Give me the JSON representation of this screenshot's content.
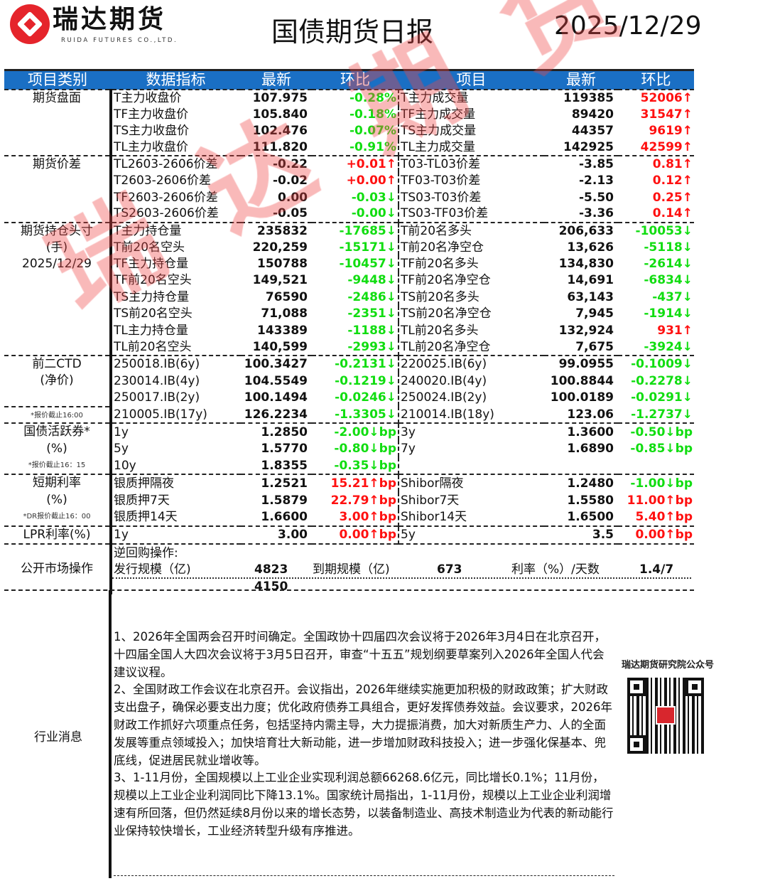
{
  "header": {
    "logo_cn": "瑞达期货",
    "logo_en": "RUIDA FUTURES CO.,LTD.",
    "title": "国债期货日报",
    "date": "2025/12/29"
  },
  "colors": {
    "up": "#ff1010",
    "down": "#11dd11",
    "header_bg": "#1a6fc4"
  },
  "watermark": "瑞达期货",
  "table": {
    "headers": [
      "项目类别",
      "数据指标",
      "最新",
      "环比",
      "项目",
      "最新",
      "环比"
    ],
    "sections": [
      {
        "category": [
          "期货盘面"
        ],
        "rows": [
          {
            "l_name": "T主力收盘价",
            "l_val": "107.975",
            "l_chg": "-0.28%",
            "l_dir": "down",
            "r_name": "T主力成交量",
            "r_val": "119385",
            "r_chg": "52006↑",
            "r_dir": "up"
          },
          {
            "l_name": "TF主力收盘价",
            "l_val": "105.840",
            "l_chg": "-0.18%",
            "l_dir": "down",
            "r_name": "TF主力成交量",
            "r_val": "89420",
            "r_chg": "31547↑",
            "r_dir": "up"
          },
          {
            "l_name": "TS主力收盘价",
            "l_val": "102.476",
            "l_chg": "-0.07%",
            "l_dir": "down",
            "r_name": "TS主力成交量",
            "r_val": "44357",
            "r_chg": "9619↑",
            "r_dir": "up"
          },
          {
            "l_name": "TL主力收盘价",
            "l_val": "111.820",
            "l_chg": "-0.91%",
            "l_dir": "down",
            "r_name": "TL主力成交量",
            "r_val": "142925",
            "r_chg": "42599↑",
            "r_dir": "up"
          }
        ]
      },
      {
        "category": [
          "期货价差"
        ],
        "rows": [
          {
            "l_name": "TL2603-2606价差",
            "l_val": "-0.22",
            "l_chg": "+0.01↑",
            "l_dir": "up",
            "r_name": "T03-TL03价差",
            "r_val": "-3.85",
            "r_chg": "0.81↑",
            "r_dir": "up"
          },
          {
            "l_name": "T2603-2606价差",
            "l_val": "-0.02",
            "l_chg": "+0.00↑",
            "l_dir": "up",
            "r_name": "TF03-T03价差",
            "r_val": "-2.13",
            "r_chg": "0.12↑",
            "r_dir": "up"
          },
          {
            "l_name": "TF2603-2606价差",
            "l_val": "0.00",
            "l_chg": "-0.03↓",
            "l_dir": "down",
            "r_name": "TS03-T03价差",
            "r_val": "-5.50",
            "r_chg": "0.25↑",
            "r_dir": "up"
          },
          {
            "l_name": "TS2603-2606价差",
            "l_val": "-0.05",
            "l_chg": "-0.00↓",
            "l_dir": "down",
            "r_name": "TS03-TF03价差",
            "r_val": "-3.36",
            "r_chg": "0.14↑",
            "r_dir": "up"
          }
        ]
      },
      {
        "category": [
          "期货持仓头寸",
          "(手)",
          "2025/12/29"
        ],
        "rows": [
          {
            "l_name": "T主力持仓量",
            "l_val": "235832",
            "l_chg": "-17685↓",
            "l_dir": "down",
            "r_name": "T前20名多头",
            "r_val": "206,633",
            "r_chg": "-10053↓",
            "r_dir": "down"
          },
          {
            "l_name": "T前20名空头",
            "l_val": "220,259",
            "l_chg": "-15171↓",
            "l_dir": "down",
            "r_name": "T前20名净空仓",
            "r_val": "13,626",
            "r_chg": "-5118↓",
            "r_dir": "down"
          },
          {
            "l_name": "TF主力持仓量",
            "l_val": "150788",
            "l_chg": "-10457↓",
            "l_dir": "down",
            "r_name": "TF前20名多头",
            "r_val": "134,830",
            "r_chg": "-2614↓",
            "r_dir": "down"
          },
          {
            "l_name": "TF前20名空头",
            "l_val": "149,521",
            "l_chg": "-9448↓",
            "l_dir": "down",
            "r_name": "TF前20名净空仓",
            "r_val": "14,691",
            "r_chg": "-6834↓",
            "r_dir": "down"
          },
          {
            "l_name": "TS主力持仓量",
            "l_val": "76590",
            "l_chg": "-2486↓",
            "l_dir": "down",
            "r_name": "TS前20名多头",
            "r_val": "63,143",
            "r_chg": "-437↓",
            "r_dir": "down"
          },
          {
            "l_name": "TS前20名空头",
            "l_val": "71,088",
            "l_chg": "-2351↓",
            "l_dir": "down",
            "r_name": "TS前20名净空仓",
            "r_val": "7,945",
            "r_chg": "-1914↓",
            "r_dir": "down"
          },
          {
            "l_name": "TL主力持仓量",
            "l_val": "143389",
            "l_chg": "-1188↓",
            "l_dir": "down",
            "r_name": "TL前20名多头",
            "r_val": "132,924",
            "r_chg": "931↑",
            "r_dir": "up"
          },
          {
            "l_name": "TL前20名空头",
            "l_val": "140,599",
            "l_chg": "-2993↓",
            "l_dir": "down",
            "r_name": "TL前20名净空仓",
            "r_val": "7,675",
            "r_chg": "-3924↓",
            "r_dir": "down"
          }
        ]
      },
      {
        "category": [
          "前二CTD",
          "(净价)",
          "",
          "*报价截止16:00"
        ],
        "rows": [
          {
            "l_name": "250018.IB(6y)",
            "l_val": "100.3427",
            "l_chg": "-0.2131↓",
            "l_dir": "down",
            "r_name": "220025.IB(6y)",
            "r_val": "99.0955",
            "r_chg": "-0.1009↓",
            "r_dir": "down"
          },
          {
            "l_name": "230014.IB(4y)",
            "l_val": "104.5549",
            "l_chg": "-0.1219↓",
            "l_dir": "down",
            "r_name": "240020.IB(4y)",
            "r_val": "100.8844",
            "r_chg": "-0.2278↓",
            "r_dir": "down"
          },
          {
            "l_name": "250017.IB(2y)",
            "l_val": "100.1494",
            "l_chg": "-0.0246↓",
            "l_dir": "down",
            "r_name": "250024.IB(2y)",
            "r_val": "100.0189",
            "r_chg": "-0.0291↓",
            "r_dir": "down"
          },
          {
            "l_name": "210005.IB(17y)",
            "l_val": "126.2234",
            "l_chg": "-1.3305↓",
            "l_dir": "down",
            "r_name": "210014.IB(18y)",
            "r_val": "123.06",
            "r_chg": "-1.2737↓",
            "r_dir": "down"
          }
        ]
      },
      {
        "category": [
          "国债活跃券*",
          "(%)",
          "*报价截止16：15"
        ],
        "rows": [
          {
            "l_name": "1y",
            "l_val": "1.2850",
            "l_chg": "-2.00↓bp",
            "l_dir": "down",
            "r_name": "3y",
            "r_val": "1.3600",
            "r_chg": "-0.50↓bp",
            "r_dir": "down"
          },
          {
            "l_name": "5y",
            "l_val": "1.5770",
            "l_chg": "-0.80↓bp",
            "l_dir": "down",
            "r_name": "7y",
            "r_val": "1.6890",
            "r_chg": "-0.85↓bp",
            "r_dir": "down"
          },
          {
            "l_name": "10y",
            "l_val": "1.8355",
            "l_chg": "-0.35↓bp",
            "l_dir": "down",
            "r_name": "",
            "r_val": "",
            "r_chg": "",
            "r_dir": "down"
          }
        ]
      },
      {
        "category": [
          "短期利率",
          "(%)",
          "*DR报价截止16：00"
        ],
        "rows": [
          {
            "l_name": "银质押隔夜",
            "l_val": "1.2521",
            "l_chg": "15.21↑bp",
            "l_dir": "up",
            "r_name": "Shibor隔夜",
            "r_val": "1.2480",
            "r_chg": "-1.00↓bp",
            "r_dir": "down"
          },
          {
            "l_name": "银质押7天",
            "l_val": "1.5879",
            "l_chg": "22.79↑bp",
            "l_dir": "up",
            "r_name": "Shibor7天",
            "r_val": "1.5580",
            "r_chg": "11.00↑bp",
            "r_dir": "up"
          },
          {
            "l_name": "银质押14天",
            "l_val": "1.6600",
            "l_chg": "3.00↑bp",
            "l_dir": "up",
            "r_name": "Shibor14天",
            "r_val": "1.6500",
            "r_chg": "5.40↑bp",
            "r_dir": "up"
          }
        ]
      },
      {
        "category": [
          "LPR利率(%)"
        ],
        "rows": [
          {
            "l_name": "1y",
            "l_val": "3.00",
            "l_chg": "0.00↑bp",
            "l_dir": "up",
            "r_name": "5y",
            "r_val": "3.5",
            "r_chg": "0.00↑bp",
            "r_dir": "up"
          }
        ]
      }
    ],
    "omo": {
      "category": "公开市场操作",
      "title": "逆回购操作:",
      "issue_label": "发行规模（亿)",
      "issue_value": "4823",
      "issue_value_2": "4150",
      "maturity_label": "到期规模（亿)",
      "maturity_value": "673",
      "rate_label": "利率（%）/天数",
      "rate_value": "1.4/7"
    }
  },
  "news": {
    "label": "行业消息",
    "items": [
      "1、2026年全国两会召开时间确定。全国政协十四届四次会议将于2026年3月4日在北京召开，十四届全国人大四次会议将于3月5日召开，审查“十五五”规划纲要草案列入2026年全国人代会建议议程。",
      "2、全国财政工作会议在北京召开。会议指出，2026年继续实施更加积极的财政政策；扩大财政支出盘子，确保必要支出力度；优化政府债券工具组合，更好发挥债券效益。会议要求，2026年财政工作抓好六项重点任务，包括坚持内需主导，大力提振消费，加大对新质生产力、人的全面发展等重点领域投入；加快培育壮大新动能，进一步增加财政科技投入；进一步强化保基本、兜底线，促进居民就业增收等。",
      "3、1-11月份，全国规模以上工业企业实现利润总额66268.6亿元，同比增长0.1%；11月份，规模以上工业企业利润同比下降13.1%。国家统计局指出，1-11月份，规模以上工业企业利润增速有所回落，但仍然延续8月份以来的增长态势，以装备制造业、高技术制造业为代表的新动能行业保持较快增长，工业经济转型升级有序推进。"
    ],
    "qr_label": "瑞达期货研究院公众号"
  }
}
